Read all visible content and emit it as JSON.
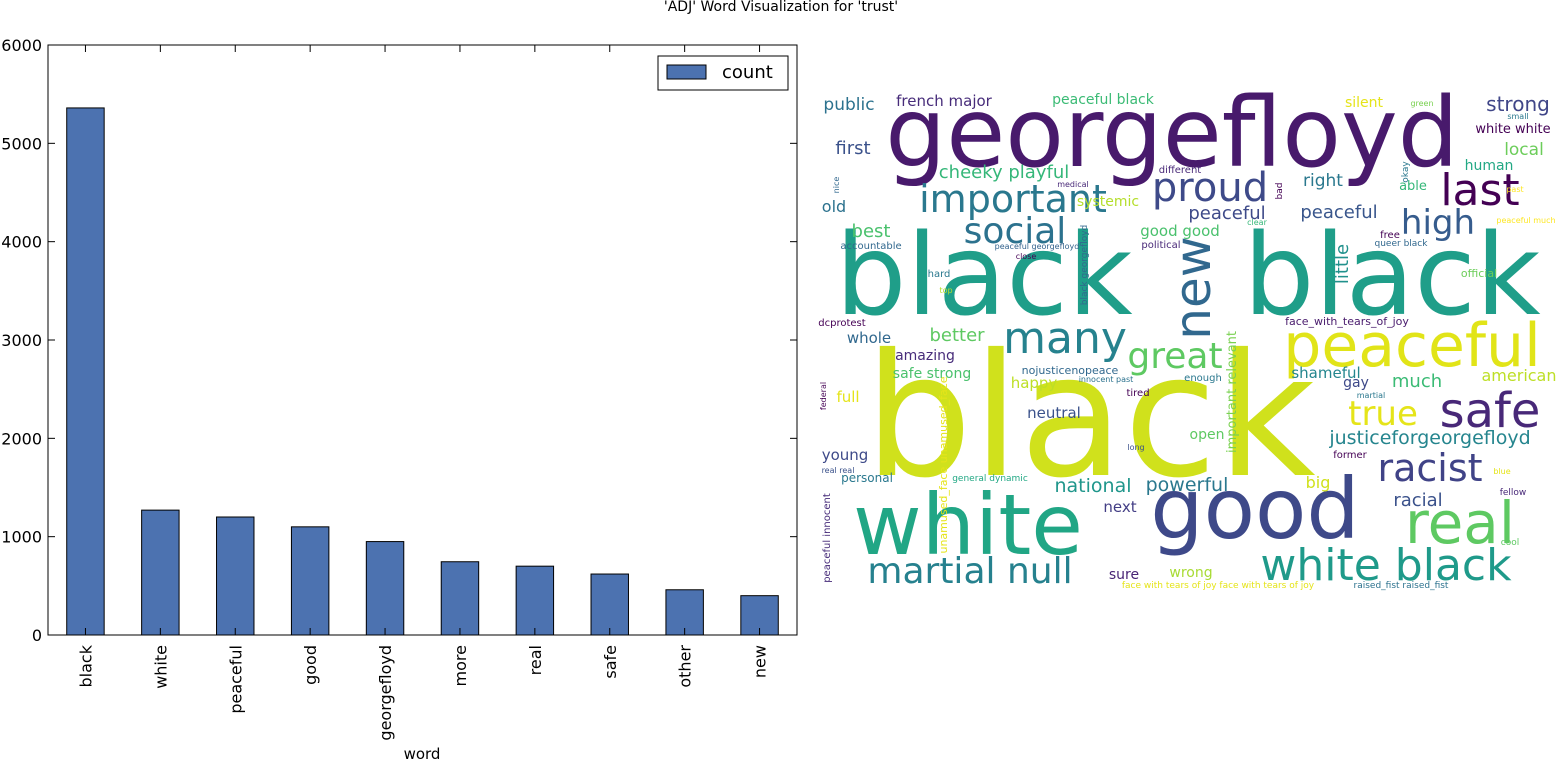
{
  "figure": {
    "title": "'ADJ' Word Visualization for 'trust'"
  },
  "colors": {
    "bar_fill": "#4c72b0",
    "bar_stroke": "#000000",
    "axis": "#000000",
    "background": "#ffffff"
  },
  "chart_data": [
    {
      "type": "bar",
      "categories": [
        "black",
        "white",
        "peaceful",
        "good",
        "georgefloyd",
        "more",
        "real",
        "safe",
        "other",
        "new"
      ],
      "series": [
        {
          "name": "count",
          "values": [
            5360,
            1270,
            1200,
            1100,
            950,
            745,
            700,
            620,
            460,
            400
          ]
        }
      ],
      "xlabel": "word",
      "ylabel": "",
      "ylim": [
        0,
        6000
      ],
      "yticks": [
        0,
        1000,
        2000,
        3000,
        4000,
        5000,
        6000
      ],
      "legend": {
        "position": "top-right",
        "labels": [
          "count"
        ]
      },
      "grid": false
    },
    {
      "type": "wordcloud",
      "palette": "viridis",
      "words": [
        {
          "text": "black",
          "color": "#d0e11c"
        },
        {
          "text": "georgefloyd",
          "color": "#481a6c"
        },
        {
          "text": "black",
          "color": "#1f9e89"
        },
        {
          "text": "black",
          "color": "#1f9e89"
        },
        {
          "text": "white",
          "color": "#21a685"
        },
        {
          "text": "good",
          "color": "#3e4989"
        },
        {
          "text": "peaceful",
          "color": "#e1e418"
        },
        {
          "text": "real",
          "color": "#5ec962"
        },
        {
          "text": "white black",
          "color": "#1f9a8a"
        },
        {
          "text": "martial null",
          "color": "#26818e"
        },
        {
          "text": "safe",
          "color": "#482878"
        },
        {
          "text": "many",
          "color": "#26828e"
        },
        {
          "text": "new",
          "color": "#31688e"
        },
        {
          "text": "proud",
          "color": "#3e4a89"
        },
        {
          "text": "important",
          "color": "#2a788e"
        },
        {
          "text": "last",
          "color": "#440154"
        },
        {
          "text": "racist",
          "color": "#404387"
        },
        {
          "text": "great",
          "color": "#5ec962"
        },
        {
          "text": "social",
          "color": "#2c728e"
        },
        {
          "text": "true",
          "color": "#e5e419"
        },
        {
          "text": "high",
          "color": "#365c8d"
        },
        {
          "text": "justiceforgeorgefloyd",
          "color": "#25858e"
        },
        {
          "text": "little",
          "color": "#21918c"
        },
        {
          "text": "national",
          "color": "#1f968b"
        },
        {
          "text": "powerful",
          "color": "#2a788e"
        },
        {
          "text": "racial",
          "color": "#3b528b"
        },
        {
          "text": "cheeky playful",
          "color": "#35b779"
        },
        {
          "text": "strong",
          "color": "#404688"
        },
        {
          "text": "local",
          "color": "#6ccd5a"
        },
        {
          "text": "peaceful",
          "color": "#3e4a89"
        },
        {
          "text": "peaceful",
          "color": "#39568c"
        },
        {
          "text": "right",
          "color": "#2a788e"
        },
        {
          "text": "first",
          "color": "#3b528b"
        },
        {
          "text": "public",
          "color": "#2c728e"
        },
        {
          "text": "french major",
          "color": "#472c7a"
        },
        {
          "text": "peaceful black",
          "color": "#3bbb75"
        },
        {
          "text": "white white",
          "color": "#440154"
        },
        {
          "text": "silent",
          "color": "#e5e419"
        },
        {
          "text": "human",
          "color": "#22a884"
        },
        {
          "text": "best",
          "color": "#4ac16d"
        },
        {
          "text": "good good",
          "color": "#4ac16d"
        },
        {
          "text": "old",
          "color": "#2c728e"
        },
        {
          "text": "systemic",
          "color": "#b5de2b"
        },
        {
          "text": "better",
          "color": "#5ec962"
        },
        {
          "text": "whole",
          "color": "#31688e"
        },
        {
          "text": "amazing",
          "color": "#472c7a"
        },
        {
          "text": "safe strong",
          "color": "#4ac16d"
        },
        {
          "text": "shameful",
          "color": "#24868e"
        },
        {
          "text": "gay",
          "color": "#3e4989"
        },
        {
          "text": "much",
          "color": "#3bbb75"
        },
        {
          "text": "american",
          "color": "#bddf26"
        },
        {
          "text": "happy",
          "color": "#bddf26"
        },
        {
          "text": "neutral",
          "color": "#3b528b"
        },
        {
          "text": "full",
          "color": "#e5e419"
        },
        {
          "text": "open",
          "color": "#5ec962"
        },
        {
          "text": "young",
          "color": "#3e4a89"
        },
        {
          "text": "next",
          "color": "#433e85"
        },
        {
          "text": "big",
          "color": "#d0e11c"
        },
        {
          "text": "sure",
          "color": "#482475"
        },
        {
          "text": "wrong",
          "color": "#a8db34"
        },
        {
          "text": "personal",
          "color": "#2a788e"
        },
        {
          "text": "important relevant",
          "color": "#7ad151"
        },
        {
          "text": "unamused_face unamused_face",
          "color": "#e5e419"
        },
        {
          "text": "face_with_tears_of_joy",
          "color": "#481a6c"
        },
        {
          "text": "nojusticenopeace",
          "color": "#31688e"
        },
        {
          "text": "different",
          "color": "#482878"
        },
        {
          "text": "okay",
          "color": "#2a788e"
        },
        {
          "text": "able",
          "color": "#35b779"
        },
        {
          "text": "bad",
          "color": "#440154"
        },
        {
          "text": "free",
          "color": "#440154"
        },
        {
          "text": "queer black",
          "color": "#31688e"
        },
        {
          "text": "accountable",
          "color": "#31688e"
        },
        {
          "text": "political",
          "color": "#482878"
        },
        {
          "text": "peaceful georgefloyd",
          "color": "#33638d"
        },
        {
          "text": "close",
          "color": "#440154"
        },
        {
          "text": "black georgefloyd",
          "color": "#31688e"
        },
        {
          "text": "hard",
          "color": "#2a788e"
        },
        {
          "text": "top",
          "color": "#b5de2b"
        },
        {
          "text": "dcprotest",
          "color": "#440154"
        },
        {
          "text": "official",
          "color": "#6ccd5a"
        },
        {
          "text": "peaceful innocent",
          "color": "#472c7a"
        },
        {
          "text": "real real",
          "color": "#3b528b"
        },
        {
          "text": "general dynamic",
          "color": "#22a884"
        },
        {
          "text": "former",
          "color": "#440154"
        },
        {
          "text": "tired",
          "color": "#440154"
        },
        {
          "text": "enough",
          "color": "#2a788e"
        },
        {
          "text": "innocent past",
          "color": "#2c728e"
        },
        {
          "text": "martial",
          "color": "#2a788e"
        },
        {
          "text": "long",
          "color": "#3b528b"
        },
        {
          "text": "face with tears of joy face with tears of joy",
          "color": "#e5e419"
        },
        {
          "text": "raised_fist raised_fist",
          "color": "#2c728e"
        },
        {
          "text": "fellow",
          "color": "#482878"
        },
        {
          "text": "cool",
          "color": "#5ec962"
        },
        {
          "text": "blue",
          "color": "#e5e419"
        },
        {
          "text": "clear",
          "color": "#35b779"
        },
        {
          "text": "nice",
          "color": "#31688e"
        },
        {
          "text": "medical",
          "color": "#482878"
        },
        {
          "text": "green",
          "color": "#7ad151"
        },
        {
          "text": "small",
          "color": "#2a788e"
        },
        {
          "text": "past",
          "color": "#fde725"
        },
        {
          "text": "peaceful much",
          "color": "#fde725"
        },
        {
          "text": "federal",
          "color": "#440154"
        }
      ]
    }
  ]
}
